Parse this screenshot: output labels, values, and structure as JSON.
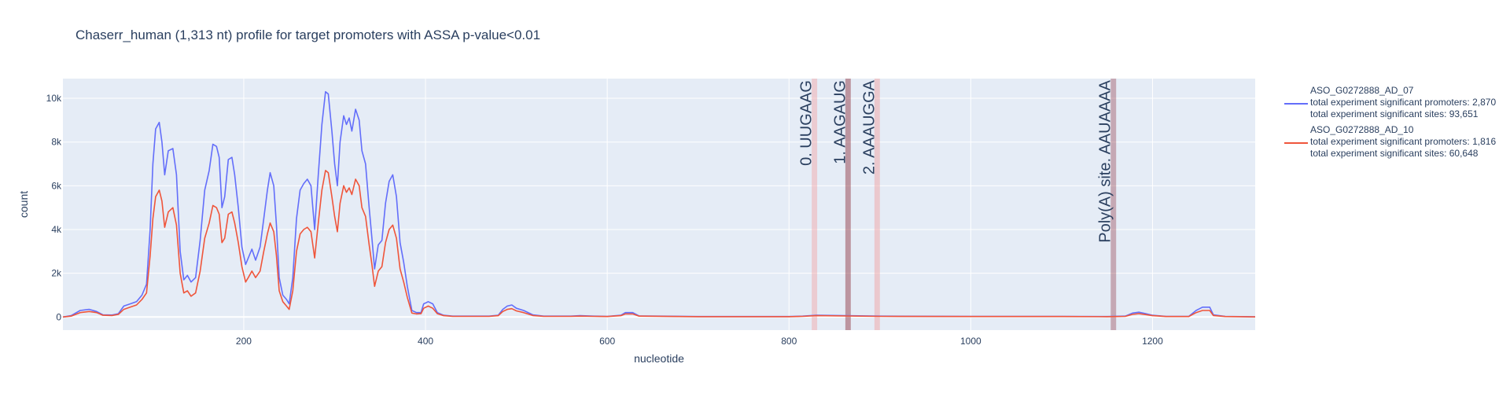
{
  "chart_data": {
    "type": "line",
    "title": "Chaserr_human (1,313 nt) profile for target promoters with ASSA p-value<0.01",
    "xlabel": "nucleotide",
    "ylabel": "count",
    "xlim": [
      1,
      1313
    ],
    "ylim": [
      -600,
      10900
    ],
    "x_ticks": [
      200,
      400,
      600,
      800,
      1000,
      1200
    ],
    "x_tick_labels": [
      "200",
      "400",
      "600",
      "800",
      "1000",
      "1200"
    ],
    "y_ticks": [
      0,
      2000,
      4000,
      6000,
      8000,
      10000
    ],
    "y_tick_labels": [
      "0",
      "2k",
      "4k",
      "6k",
      "8k",
      "10k"
    ],
    "grid": true,
    "legend_position": "right",
    "series": [
      {
        "name": "ASO_G0272888_AD_07",
        "legend_lines": [
          "ASO_G0272888_AD_07",
          "total experiment significant promoters: 2,870",
          "total experiment significant sites: 93,651"
        ],
        "color": "#636efa",
        "points": [
          [
            1,
            0
          ],
          [
            10,
            60
          ],
          [
            20,
            300
          ],
          [
            30,
            350
          ],
          [
            38,
            250
          ],
          [
            45,
            100
          ],
          [
            55,
            90
          ],
          [
            62,
            150
          ],
          [
            68,
            500
          ],
          [
            75,
            600
          ],
          [
            82,
            700
          ],
          [
            88,
            1000
          ],
          [
            93,
            1500
          ],
          [
            97,
            4000
          ],
          [
            100,
            7000
          ],
          [
            103,
            8600
          ],
          [
            107,
            8900
          ],
          [
            110,
            8000
          ],
          [
            113,
            6500
          ],
          [
            117,
            7600
          ],
          [
            122,
            7700
          ],
          [
            126,
            6500
          ],
          [
            130,
            3000
          ],
          [
            134,
            1700
          ],
          [
            138,
            1900
          ],
          [
            142,
            1600
          ],
          [
            147,
            1800
          ],
          [
            152,
            3500
          ],
          [
            157,
            5800
          ],
          [
            162,
            6700
          ],
          [
            166,
            7900
          ],
          [
            170,
            7800
          ],
          [
            173,
            7300
          ],
          [
            176,
            5000
          ],
          [
            179,
            5500
          ],
          [
            183,
            7200
          ],
          [
            187,
            7300
          ],
          [
            190,
            6500
          ],
          [
            194,
            5000
          ],
          [
            198,
            3200
          ],
          [
            202,
            2400
          ],
          [
            205,
            2700
          ],
          [
            209,
            3100
          ],
          [
            213,
            2600
          ],
          [
            218,
            3200
          ],
          [
            222,
            4500
          ],
          [
            226,
            5800
          ],
          [
            229,
            6600
          ],
          [
            233,
            6000
          ],
          [
            236,
            4200
          ],
          [
            239,
            1800
          ],
          [
            243,
            1000
          ],
          [
            247,
            800
          ],
          [
            250,
            600
          ],
          [
            254,
            1800
          ],
          [
            258,
            4500
          ],
          [
            262,
            5800
          ],
          [
            266,
            6100
          ],
          [
            270,
            6300
          ],
          [
            274,
            6000
          ],
          [
            278,
            4000
          ],
          [
            282,
            6500
          ],
          [
            286,
            8800
          ],
          [
            290,
            10300
          ],
          [
            293,
            10200
          ],
          [
            297,
            8500
          ],
          [
            300,
            7000
          ],
          [
            303,
            6000
          ],
          [
            306,
            8000
          ],
          [
            310,
            9200
          ],
          [
            313,
            8800
          ],
          [
            316,
            9100
          ],
          [
            319,
            8500
          ],
          [
            323,
            9500
          ],
          [
            327,
            9000
          ],
          [
            330,
            7600
          ],
          [
            334,
            7000
          ],
          [
            338,
            5000
          ],
          [
            341,
            3600
          ],
          [
            344,
            2200
          ],
          [
            348,
            3300
          ],
          [
            352,
            3500
          ],
          [
            356,
            5200
          ],
          [
            360,
            6200
          ],
          [
            364,
            6500
          ],
          [
            368,
            5500
          ],
          [
            372,
            3400
          ],
          [
            376,
            2500
          ],
          [
            380,
            1400
          ],
          [
            385,
            300
          ],
          [
            390,
            200
          ],
          [
            395,
            200
          ],
          [
            398,
            600
          ],
          [
            403,
            700
          ],
          [
            408,
            600
          ],
          [
            413,
            200
          ],
          [
            420,
            80
          ],
          [
            430,
            40
          ],
          [
            450,
            40
          ],
          [
            470,
            40
          ],
          [
            480,
            80
          ],
          [
            485,
            350
          ],
          [
            490,
            500
          ],
          [
            495,
            550
          ],
          [
            500,
            400
          ],
          [
            508,
            300
          ],
          [
            518,
            100
          ],
          [
            530,
            40
          ],
          [
            560,
            40
          ],
          [
            570,
            60
          ],
          [
            585,
            40
          ],
          [
            600,
            30
          ],
          [
            615,
            80
          ],
          [
            620,
            200
          ],
          [
            628,
            200
          ],
          [
            635,
            50
          ],
          [
            700,
            20
          ],
          [
            800,
            20
          ],
          [
            815,
            40
          ],
          [
            830,
            80
          ],
          [
            900,
            40
          ],
          [
            1000,
            30
          ],
          [
            1100,
            30
          ],
          [
            1150,
            20
          ],
          [
            1170,
            40
          ],
          [
            1178,
            180
          ],
          [
            1185,
            220
          ],
          [
            1192,
            160
          ],
          [
            1200,
            80
          ],
          [
            1215,
            30
          ],
          [
            1240,
            30
          ],
          [
            1248,
            300
          ],
          [
            1255,
            450
          ],
          [
            1263,
            450
          ],
          [
            1267,
            100
          ],
          [
            1280,
            30
          ],
          [
            1313,
            10
          ]
        ]
      },
      {
        "name": "ASO_G0272888_AD_10",
        "legend_lines": [
          "ASO_G0272888_AD_10",
          "total experiment significant promoters: 1,816",
          "total experiment significant sites: 60,648"
        ],
        "color": "#ef553b",
        "points": [
          [
            1,
            0
          ],
          [
            10,
            40
          ],
          [
            20,
            200
          ],
          [
            30,
            250
          ],
          [
            38,
            200
          ],
          [
            45,
            80
          ],
          [
            55,
            70
          ],
          [
            62,
            120
          ],
          [
            68,
            350
          ],
          [
            75,
            450
          ],
          [
            82,
            550
          ],
          [
            88,
            800
          ],
          [
            93,
            1100
          ],
          [
            97,
            2800
          ],
          [
            100,
            4500
          ],
          [
            103,
            5500
          ],
          [
            107,
            5800
          ],
          [
            110,
            5300
          ],
          [
            113,
            4100
          ],
          [
            117,
            4800
          ],
          [
            122,
            5000
          ],
          [
            126,
            4200
          ],
          [
            130,
            2000
          ],
          [
            134,
            1100
          ],
          [
            138,
            1200
          ],
          [
            142,
            950
          ],
          [
            147,
            1100
          ],
          [
            152,
            2100
          ],
          [
            157,
            3600
          ],
          [
            162,
            4300
          ],
          [
            166,
            5100
          ],
          [
            170,
            5000
          ],
          [
            173,
            4700
          ],
          [
            176,
            3400
          ],
          [
            179,
            3600
          ],
          [
            183,
            4700
          ],
          [
            187,
            4800
          ],
          [
            190,
            4300
          ],
          [
            194,
            3400
          ],
          [
            198,
            2300
          ],
          [
            202,
            1600
          ],
          [
            205,
            1800
          ],
          [
            209,
            2100
          ],
          [
            213,
            1800
          ],
          [
            218,
            2100
          ],
          [
            222,
            3000
          ],
          [
            226,
            3800
          ],
          [
            229,
            4300
          ],
          [
            233,
            3900
          ],
          [
            236,
            2800
          ],
          [
            239,
            1200
          ],
          [
            243,
            700
          ],
          [
            247,
            500
          ],
          [
            250,
            350
          ],
          [
            254,
            1200
          ],
          [
            258,
            3000
          ],
          [
            262,
            3800
          ],
          [
            266,
            4000
          ],
          [
            270,
            4100
          ],
          [
            274,
            3900
          ],
          [
            278,
            2700
          ],
          [
            282,
            4300
          ],
          [
            286,
            5800
          ],
          [
            290,
            6700
          ],
          [
            293,
            6600
          ],
          [
            297,
            5500
          ],
          [
            300,
            4600
          ],
          [
            303,
            3900
          ],
          [
            306,
            5200
          ],
          [
            310,
            6000
          ],
          [
            313,
            5700
          ],
          [
            316,
            5900
          ],
          [
            319,
            5600
          ],
          [
            323,
            6300
          ],
          [
            327,
            6000
          ],
          [
            330,
            5000
          ],
          [
            334,
            4600
          ],
          [
            338,
            3300
          ],
          [
            341,
            2400
          ],
          [
            344,
            1400
          ],
          [
            348,
            2100
          ],
          [
            352,
            2300
          ],
          [
            356,
            3400
          ],
          [
            360,
            4000
          ],
          [
            364,
            4200
          ],
          [
            368,
            3600
          ],
          [
            372,
            2200
          ],
          [
            376,
            1600
          ],
          [
            380,
            900
          ],
          [
            385,
            180
          ],
          [
            390,
            140
          ],
          [
            395,
            150
          ],
          [
            398,
            400
          ],
          [
            403,
            500
          ],
          [
            408,
            400
          ],
          [
            413,
            150
          ],
          [
            420,
            60
          ],
          [
            430,
            30
          ],
          [
            450,
            30
          ],
          [
            470,
            30
          ],
          [
            480,
            60
          ],
          [
            485,
            250
          ],
          [
            490,
            350
          ],
          [
            495,
            380
          ],
          [
            500,
            280
          ],
          [
            508,
            200
          ],
          [
            518,
            70
          ],
          [
            530,
            30
          ],
          [
            560,
            30
          ],
          [
            570,
            40
          ],
          [
            585,
            30
          ],
          [
            600,
            20
          ],
          [
            615,
            60
          ],
          [
            620,
            140
          ],
          [
            628,
            140
          ],
          [
            635,
            40
          ],
          [
            700,
            15
          ],
          [
            800,
            15
          ],
          [
            815,
            30
          ],
          [
            830,
            60
          ],
          [
            900,
            30
          ],
          [
            1000,
            20
          ],
          [
            1100,
            20
          ],
          [
            1150,
            15
          ],
          [
            1170,
            30
          ],
          [
            1178,
            120
          ],
          [
            1185,
            150
          ],
          [
            1192,
            110
          ],
          [
            1200,
            60
          ],
          [
            1215,
            20
          ],
          [
            1240,
            20
          ],
          [
            1248,
            200
          ],
          [
            1255,
            300
          ],
          [
            1263,
            300
          ],
          [
            1267,
            70
          ],
          [
            1280,
            20
          ],
          [
            1313,
            5
          ]
        ]
      }
    ],
    "annotations": [
      {
        "label": "0. UUGAAG",
        "x": 828,
        "band": [
          825,
          831
        ],
        "color": "#f2a3a3",
        "opacity": 0.45
      },
      {
        "label": "1. AAGAUG",
        "x": 865,
        "band": [
          862,
          868
        ],
        "color": "#8a2c38",
        "opacity": 0.45
      },
      {
        "label": "2. AAAUGGA",
        "x": 897,
        "band": [
          894,
          900
        ],
        "color": "#f2a3a3",
        "opacity": 0.5
      },
      {
        "label": "Poly(A) site. AAUAAAA",
        "x": 1157,
        "band": [
          1154,
          1160
        ],
        "color": "#8a2c38",
        "opacity": 0.35
      }
    ]
  }
}
